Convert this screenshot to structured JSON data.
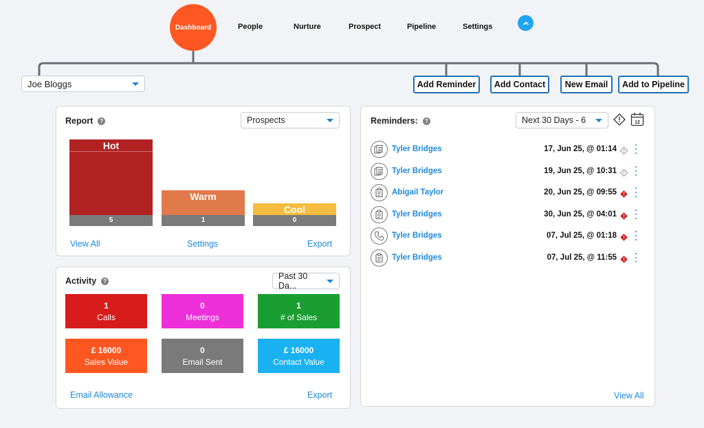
{
  "nav": {
    "items": [
      {
        "label": "Dashboard",
        "active": true
      },
      {
        "label": "People"
      },
      {
        "label": "Nurture"
      },
      {
        "label": "Prospect"
      },
      {
        "label": "Pipeline"
      },
      {
        "label": "Settings"
      }
    ],
    "collapse_icon": "chevron-up-icon"
  },
  "user_select": {
    "value": "Joe Bloggs"
  },
  "actions": {
    "add_reminder": "Add Reminder",
    "add_contact": "Add Contact",
    "new_email": "New Email",
    "add_to_pipeline": "Add to Pipeline"
  },
  "report": {
    "title": "Report",
    "filter": "Prospects",
    "bars": [
      {
        "label": "Hot",
        "count": "5",
        "value": 5,
        "color": "#b22222"
      },
      {
        "label": "Warm",
        "count": "1",
        "value": 1,
        "color": "#e07a4a"
      },
      {
        "label": "Cool",
        "count": "0",
        "value": 0,
        "color": "#f4bd3f"
      }
    ],
    "links": {
      "view_all": "View All",
      "settings": "Settings",
      "export": "Export"
    }
  },
  "activity": {
    "title": "Activity",
    "filter": "Past 30 Da...",
    "tiles": [
      {
        "value": "1",
        "label": "Calls",
        "color": "#d81b1b"
      },
      {
        "value": "0",
        "label": "Meetings",
        "color": "#ec2fd8"
      },
      {
        "value": "1",
        "label": "# of Sales",
        "color": "#1a9e32"
      },
      {
        "value": "£ 16000",
        "label": "Sales Value",
        "color": "#ff5722"
      },
      {
        "value": "0",
        "label": "Email Sent",
        "color": "#7a7a7a"
      },
      {
        "value": "£ 16000",
        "label": "Contact Value",
        "color": "#1ab1f2"
      }
    ],
    "links": {
      "email_allowance": "Email Allowance",
      "export": "Export"
    }
  },
  "reminders": {
    "title": "Reminders:",
    "filter": "Next 30 Days - 6",
    "calendar_day": "12",
    "items": [
      {
        "icon": "money-icon",
        "name": "Tyler Bridges",
        "date": "17, Jun 25, @ 01:14",
        "status": "upcoming"
      },
      {
        "icon": "money-icon",
        "name": "Tyler Bridges",
        "date": "19, Jun 25, @ 10:31",
        "status": "upcoming"
      },
      {
        "icon": "clipboard-icon",
        "name": "Abigail Taylor",
        "date": "20, Jun 25, @ 09:55",
        "status": "overdue"
      },
      {
        "icon": "clipboard-icon",
        "name": "Tyler Bridges",
        "date": "30, Jun 25, @ 04:01",
        "status": "overdue"
      },
      {
        "icon": "phone-icon",
        "name": "Tyler Bridges",
        "date": "07, Jul 25, @ 01:18",
        "status": "overdue"
      },
      {
        "icon": "clipboard-icon",
        "name": "Tyler Bridges",
        "date": "07, Jul 25, @ 11:55",
        "status": "overdue"
      }
    ],
    "view_all": "View All"
  }
}
